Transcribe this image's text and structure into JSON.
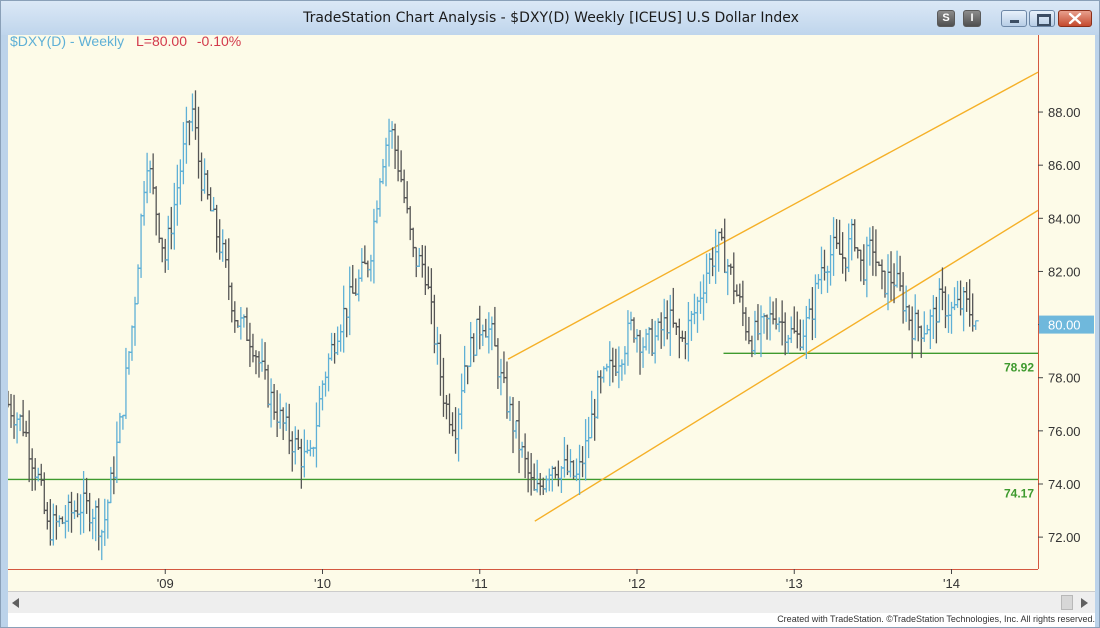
{
  "window": {
    "title": "TradeStation Chart Analysis - $DXY(D) Weekly [ICEUS] U.S Dollar Index",
    "buttons": {
      "s": "S",
      "i": "I"
    }
  },
  "legend": {
    "symbol": "$DXY(D) - Weekly",
    "last": "L=80.00",
    "change": "-0.10%"
  },
  "footer": {
    "note": "Created with TradeStation. ©TradeStation Technologies, Inc. All rights reserved."
  },
  "colors": {
    "background": "#fdfbe8",
    "up_bars": "#5fb0d6",
    "down_bars": "#555555",
    "channel": "#f5b027",
    "support": "#3e9a2e",
    "last_price_tag": "#6fb8dc",
    "axis": "#d4573f"
  },
  "icons": [
    "scroll-left-icon",
    "scroll-right-icon",
    "minimize-icon",
    "maximize-icon",
    "close-icon"
  ],
  "chart_data": {
    "type": "line",
    "title": "$DXY(D) - Weekly",
    "xlabel": "",
    "ylabel": "",
    "x_tick_labels": [
      "'09",
      "'10",
      "'11",
      "'12",
      "'13",
      "'14"
    ],
    "x_ticks": [
      2009.0,
      2010.0,
      2011.0,
      2012.0,
      2013.0,
      2014.0
    ],
    "xlim": [
      2008.0,
      2014.55
    ],
    "y_ticks": [
      72.0,
      74.0,
      76.0,
      78.0,
      80.0,
      82.0,
      84.0,
      86.0,
      88.0
    ],
    "y_tick_labels": [
      "72.00",
      "74.00",
      "76.00",
      "78.00",
      "80.00",
      "82.00",
      "84.00",
      "86.00",
      "88.00"
    ],
    "ylim": [
      70.8,
      90.9
    ],
    "last_price": 80.0,
    "last_price_label": "80.00",
    "grid": false,
    "series": [
      {
        "values": [
          {
            "x": 2008.0,
            "y": 77.0
          },
          {
            "x": 2008.1,
            "y": 76.2
          },
          {
            "x": 2008.2,
            "y": 74.0
          },
          {
            "x": 2008.25,
            "y": 72.3
          },
          {
            "x": 2008.35,
            "y": 72.6
          },
          {
            "x": 2008.45,
            "y": 73.2
          },
          {
            "x": 2008.55,
            "y": 73.0
          },
          {
            "x": 2008.6,
            "y": 72.2
          },
          {
            "x": 2008.67,
            "y": 74.5
          },
          {
            "x": 2008.72,
            "y": 76.5
          },
          {
            "x": 2008.8,
            "y": 80.5
          },
          {
            "x": 2008.88,
            "y": 86.5
          },
          {
            "x": 2008.92,
            "y": 85.0
          },
          {
            "x": 2009.0,
            "y": 82.5
          },
          {
            "x": 2009.1,
            "y": 86.0
          },
          {
            "x": 2009.17,
            "y": 88.2
          },
          {
            "x": 2009.22,
            "y": 85.8
          },
          {
            "x": 2009.3,
            "y": 84.0
          },
          {
            "x": 2009.37,
            "y": 82.5
          },
          {
            "x": 2009.45,
            "y": 80.2
          },
          {
            "x": 2009.55,
            "y": 79.5
          },
          {
            "x": 2009.65,
            "y": 77.5
          },
          {
            "x": 2009.75,
            "y": 76.2
          },
          {
            "x": 2009.87,
            "y": 75.0
          },
          {
            "x": 2009.92,
            "y": 74.8
          },
          {
            "x": 2010.0,
            "y": 77.8
          },
          {
            "x": 2010.1,
            "y": 80.0
          },
          {
            "x": 2010.2,
            "y": 81.2
          },
          {
            "x": 2010.3,
            "y": 82.5
          },
          {
            "x": 2010.37,
            "y": 86.0
          },
          {
            "x": 2010.43,
            "y": 87.5
          },
          {
            "x": 2010.5,
            "y": 85.5
          },
          {
            "x": 2010.58,
            "y": 82.5
          },
          {
            "x": 2010.65,
            "y": 82.2
          },
          {
            "x": 2010.7,
            "y": 80.0
          },
          {
            "x": 2010.78,
            "y": 77.0
          },
          {
            "x": 2010.85,
            "y": 76.2
          },
          {
            "x": 2010.9,
            "y": 78.5
          },
          {
            "x": 2010.97,
            "y": 79.5
          },
          {
            "x": 2011.02,
            "y": 80.2
          },
          {
            "x": 2011.08,
            "y": 79.5
          },
          {
            "x": 2011.13,
            "y": 78.0
          },
          {
            "x": 2011.2,
            "y": 76.5
          },
          {
            "x": 2011.3,
            "y": 74.5
          },
          {
            "x": 2011.35,
            "y": 73.5
          },
          {
            "x": 2011.45,
            "y": 74.8
          },
          {
            "x": 2011.55,
            "y": 74.5
          },
          {
            "x": 2011.62,
            "y": 74.2
          },
          {
            "x": 2011.68,
            "y": 75.5
          },
          {
            "x": 2011.75,
            "y": 77.5
          },
          {
            "x": 2011.82,
            "y": 78.2
          },
          {
            "x": 2011.9,
            "y": 79.0
          },
          {
            "x": 2011.97,
            "y": 80.0
          },
          {
            "x": 2012.05,
            "y": 79.2
          },
          {
            "x": 2012.12,
            "y": 79.5
          },
          {
            "x": 2012.2,
            "y": 80.2
          },
          {
            "x": 2012.28,
            "y": 79.3
          },
          {
            "x": 2012.37,
            "y": 80.5
          },
          {
            "x": 2012.45,
            "y": 82.2
          },
          {
            "x": 2012.52,
            "y": 83.0
          },
          {
            "x": 2012.58,
            "y": 82.2
          },
          {
            "x": 2012.63,
            "y": 81.2
          },
          {
            "x": 2012.72,
            "y": 79.5
          },
          {
            "x": 2012.8,
            "y": 79.8
          },
          {
            "x": 2012.88,
            "y": 80.5
          },
          {
            "x": 2012.95,
            "y": 79.8
          },
          {
            "x": 2013.02,
            "y": 79.5
          },
          {
            "x": 2013.1,
            "y": 80.2
          },
          {
            "x": 2013.17,
            "y": 82.2
          },
          {
            "x": 2013.25,
            "y": 82.8
          },
          {
            "x": 2013.32,
            "y": 82.5
          },
          {
            "x": 2013.38,
            "y": 83.5
          },
          {
            "x": 2013.43,
            "y": 82.0
          },
          {
            "x": 2013.5,
            "y": 83.0
          },
          {
            "x": 2013.55,
            "y": 81.5
          },
          {
            "x": 2013.63,
            "y": 81.8
          },
          {
            "x": 2013.7,
            "y": 80.8
          },
          {
            "x": 2013.75,
            "y": 80.0
          },
          {
            "x": 2013.82,
            "y": 79.9
          },
          {
            "x": 2013.88,
            "y": 80.2
          },
          {
            "x": 2013.93,
            "y": 80.9
          },
          {
            "x": 2014.0,
            "y": 80.5
          },
          {
            "x": 2014.08,
            "y": 80.8
          },
          {
            "x": 2014.13,
            "y": 80.4
          },
          {
            "x": 2014.17,
            "y": 80.0
          }
        ]
      }
    ],
    "channel": {
      "upper": [
        {
          "x": 2011.18,
          "y": 78.7
        },
        {
          "x": 2014.55,
          "y": 89.5
        }
      ],
      "lower": [
        {
          "x": 2011.35,
          "y": 72.6
        },
        {
          "x": 2014.55,
          "y": 84.3
        }
      ]
    },
    "support_lines": [
      {
        "label": "78.92",
        "value": 78.92,
        "x_start": 2012.55,
        "x_end": 2014.55
      },
      {
        "label": "74.17",
        "value": 74.17,
        "x_start": 2008.0,
        "x_end": 2014.55
      }
    ]
  }
}
